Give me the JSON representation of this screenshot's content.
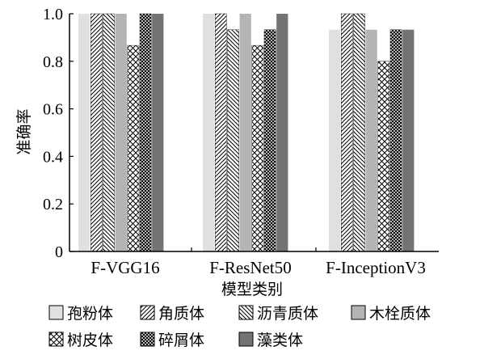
{
  "chart_data": {
    "type": "bar",
    "title": "",
    "xlabel": "模型类别",
    "ylabel": "准确率",
    "ylim": [
      0,
      1.0
    ],
    "yticks": [
      "0",
      "0.2",
      "0.4",
      "0.6",
      "0.8",
      "1.0"
    ],
    "grid": false,
    "legend_position": "bottom",
    "categories": [
      "F-VGG16",
      "F-ResNet50",
      "F-InceptionV3"
    ],
    "series": [
      {
        "name": "孢粉体",
        "values": [
          1.0,
          1.0,
          0.933
        ],
        "fill": "#e0e0e0",
        "pattern": "solid-light"
      },
      {
        "name": "角质体",
        "values": [
          1.0,
          1.0,
          1.0
        ],
        "fill": "#ffffff",
        "pattern": "diagonal-forward"
      },
      {
        "name": "沥青质体",
        "values": [
          1.0,
          0.933,
          1.0
        ],
        "fill": "#ffffff",
        "pattern": "diagonal-backward"
      },
      {
        "name": "木栓质体",
        "values": [
          1.0,
          1.0,
          0.933
        ],
        "fill": "#b4b4b4",
        "pattern": "solid-mid"
      },
      {
        "name": "树皮体",
        "values": [
          0.867,
          0.867,
          0.8
        ],
        "fill": "#ffffff",
        "pattern": "crosshatch-sparse"
      },
      {
        "name": "碎屑体",
        "values": [
          1.0,
          0.933,
          0.933
        ],
        "fill": "#ffffff",
        "pattern": "crosshatch-dense"
      },
      {
        "name": "藻类体",
        "values": [
          1.0,
          1.0,
          0.933
        ],
        "fill": "#737373",
        "pattern": "solid-dark"
      }
    ]
  }
}
